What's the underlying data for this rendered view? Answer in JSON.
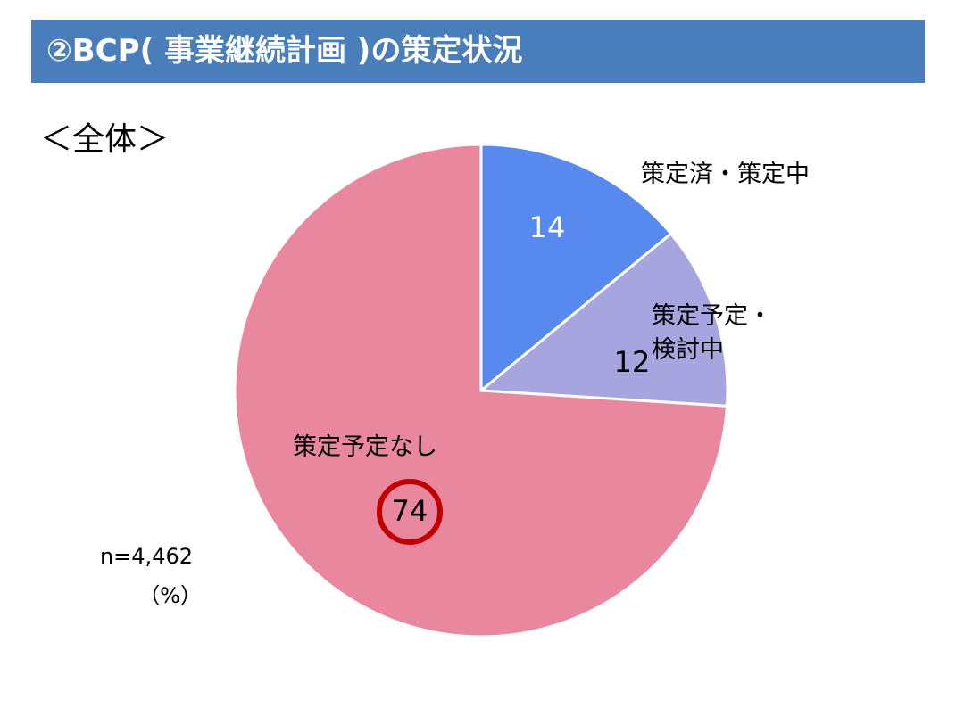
{
  "chart_data": {
    "type": "pie",
    "title": "②BCP( 事業継続計画 )の策定状況",
    "subtitle": "＜全体＞",
    "categories": [
      "策定済・策定中",
      "策定予定・検討中",
      "策定予定なし"
    ],
    "values": [
      14,
      12,
      74
    ],
    "colors": [
      "#5889EE",
      "#A6A5E0",
      "#E8879E"
    ],
    "note": "n=4,462",
    "unit": "（%）"
  }
}
